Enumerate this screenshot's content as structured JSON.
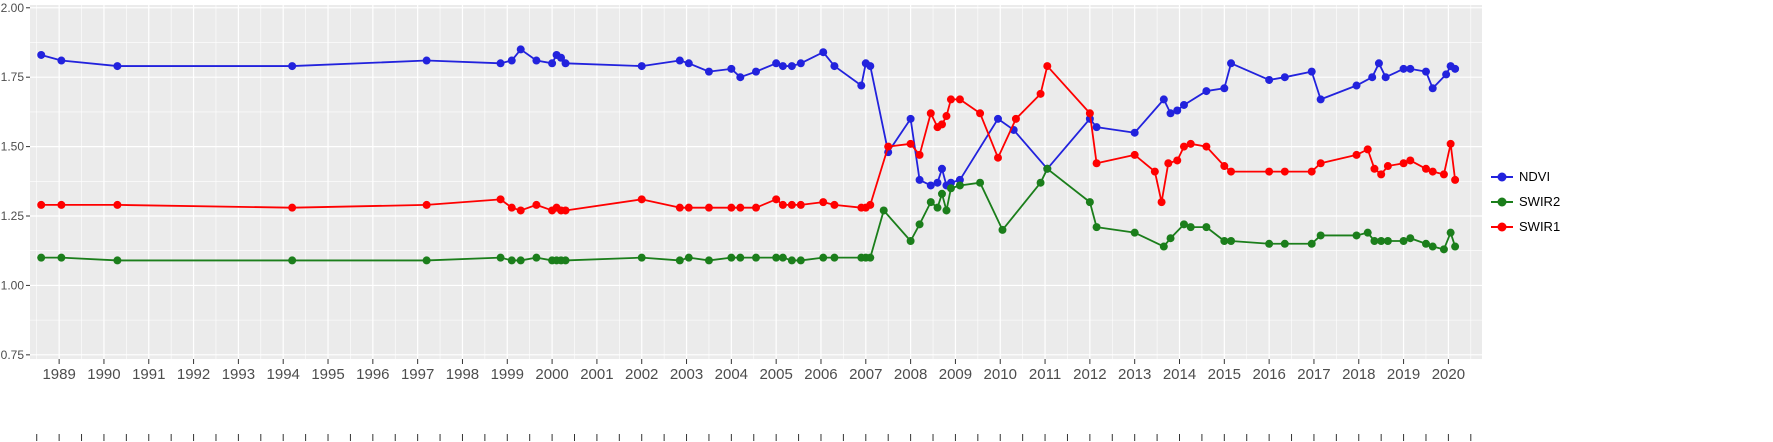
{
  "figure": {
    "background": "#FFFFFF",
    "panel_background": "#EBEBEB",
    "grid_color": "#FFFFFF",
    "axis_text_color": "#4D4D4D",
    "tick_color": "#333333"
  },
  "legend": {
    "items": [
      {
        "label": "NDVI",
        "color": "#2222DD"
      },
      {
        "label": "SWIR2",
        "color": "#1B7E1B"
      },
      {
        "label": "SWIR1",
        "color": "#FF0000"
      }
    ]
  },
  "chart_data": {
    "type": "line",
    "title": "",
    "xlabel": "",
    "ylabel": "",
    "grid": true,
    "legend_position": "right",
    "xlim": [
      1988.35,
      2020.75
    ],
    "ylim": [
      0.735,
      2.01
    ],
    "x_ticks": [
      1989,
      1990,
      1991,
      1992,
      1993,
      1994,
      1995,
      1996,
      1997,
      1998,
      1999,
      2000,
      2001,
      2002,
      2003,
      2004,
      2005,
      2006,
      2007,
      2008,
      2009,
      2010,
      2011,
      2012,
      2013,
      2014,
      2015,
      2016,
      2017,
      2018,
      2019,
      2020
    ],
    "y_ticks": [
      0.75,
      1.0,
      1.25,
      1.5,
      1.75,
      2.0
    ],
    "y_tick_labels": [
      "0.75",
      "1.00",
      "1.25",
      "1.50",
      "1.75",
      "2.00"
    ],
    "series": [
      {
        "name": "NDVI",
        "color": "#2222DD",
        "x": [
          1988.6,
          1989.05,
          1990.3,
          1994.2,
          1997.2,
          1998.85,
          1999.1,
          1999.3,
          1999.65,
          2000.0,
          2000.1,
          2000.2,
          2000.3,
          2002.0,
          2002.85,
          2003.05,
          2003.5,
          2004.0,
          2004.2,
          2004.55,
          2005.0,
          2005.15,
          2005.35,
          2005.55,
          2006.05,
          2006.3,
          2006.9,
          2007.0,
          2007.1,
          2007.5,
          2008.0,
          2008.2,
          2008.45,
          2008.6,
          2008.7,
          2008.8,
          2008.9,
          2009.1,
          2009.95,
          2010.3,
          2011.05,
          2012.0,
          2012.15,
          2013.0,
          2013.65,
          2013.8,
          2013.95,
          2014.1,
          2014.6,
          2015.0,
          2015.15,
          2016.0,
          2016.35,
          2016.95,
          2017.15,
          2017.95,
          2018.3,
          2018.45,
          2018.6,
          2019.0,
          2019.15,
          2019.5,
          2019.65,
          2019.95,
          2020.05,
          2020.15
        ],
        "y": [
          1.83,
          1.81,
          1.79,
          1.79,
          1.81,
          1.8,
          1.81,
          1.85,
          1.81,
          1.8,
          1.83,
          1.82,
          1.8,
          1.79,
          1.81,
          1.8,
          1.77,
          1.78,
          1.75,
          1.77,
          1.8,
          1.79,
          1.79,
          1.8,
          1.84,
          1.79,
          1.72,
          1.8,
          1.79,
          1.48,
          1.6,
          1.38,
          1.36,
          1.37,
          1.42,
          1.36,
          1.37,
          1.38,
          1.6,
          1.56,
          1.42,
          1.6,
          1.57,
          1.55,
          1.67,
          1.62,
          1.63,
          1.65,
          1.7,
          1.71,
          1.8,
          1.74,
          1.75,
          1.77,
          1.67,
          1.72,
          1.75,
          1.8,
          1.75,
          1.78,
          1.78,
          1.77,
          1.71,
          1.76,
          1.79,
          1.78
        ]
      },
      {
        "name": "SWIR2",
        "color": "#1B7E1B",
        "x": [
          1988.6,
          1989.05,
          1990.3,
          1994.2,
          1997.2,
          1998.85,
          1999.1,
          1999.3,
          1999.65,
          2000.0,
          2000.1,
          2000.2,
          2000.3,
          2002.0,
          2002.85,
          2003.05,
          2003.5,
          2004.0,
          2004.2,
          2004.55,
          2005.0,
          2005.15,
          2005.35,
          2005.55,
          2006.05,
          2006.3,
          2006.9,
          2007.0,
          2007.1,
          2007.4,
          2008.0,
          2008.2,
          2008.45,
          2008.6,
          2008.7,
          2008.8,
          2008.9,
          2009.1,
          2009.55,
          2010.05,
          2010.9,
          2011.05,
          2012.0,
          2012.15,
          2013.0,
          2013.65,
          2013.8,
          2014.1,
          2014.25,
          2014.6,
          2015.0,
          2015.15,
          2016.0,
          2016.35,
          2016.95,
          2017.15,
          2017.95,
          2018.2,
          2018.35,
          2018.5,
          2018.65,
          2019.0,
          2019.15,
          2019.5,
          2019.65,
          2019.9,
          2020.05,
          2020.15
        ],
        "y": [
          1.1,
          1.1,
          1.09,
          1.09,
          1.09,
          1.1,
          1.09,
          1.09,
          1.1,
          1.09,
          1.09,
          1.09,
          1.09,
          1.1,
          1.09,
          1.1,
          1.09,
          1.1,
          1.1,
          1.1,
          1.1,
          1.1,
          1.09,
          1.09,
          1.1,
          1.1,
          1.1,
          1.1,
          1.1,
          1.27,
          1.16,
          1.22,
          1.3,
          1.28,
          1.33,
          1.27,
          1.35,
          1.36,
          1.37,
          1.2,
          1.37,
          1.42,
          1.3,
          1.21,
          1.19,
          1.14,
          1.17,
          1.22,
          1.21,
          1.21,
          1.16,
          1.16,
          1.15,
          1.15,
          1.15,
          1.18,
          1.18,
          1.19,
          1.16,
          1.16,
          1.16,
          1.16,
          1.17,
          1.15,
          1.14,
          1.13,
          1.19,
          1.14
        ]
      },
      {
        "name": "SWIR1",
        "color": "#FF0000",
        "x": [
          1988.6,
          1989.05,
          1990.3,
          1994.2,
          1997.2,
          1998.85,
          1999.1,
          1999.3,
          1999.65,
          2000.0,
          2000.1,
          2000.2,
          2000.3,
          2002.0,
          2002.85,
          2003.05,
          2003.5,
          2004.0,
          2004.2,
          2004.55,
          2005.0,
          2005.15,
          2005.35,
          2005.55,
          2006.05,
          2006.3,
          2006.9,
          2007.0,
          2007.1,
          2007.5,
          2008.0,
          2008.2,
          2008.45,
          2008.6,
          2008.7,
          2008.8,
          2008.9,
          2009.1,
          2009.55,
          2009.95,
          2010.35,
          2010.9,
          2011.05,
          2012.0,
          2012.15,
          2013.0,
          2013.45,
          2013.6,
          2013.75,
          2013.95,
          2014.1,
          2014.25,
          2014.6,
          2015.0,
          2015.15,
          2016.0,
          2016.35,
          2016.95,
          2017.15,
          2017.95,
          2018.2,
          2018.35,
          2018.5,
          2018.65,
          2019.0,
          2019.15,
          2019.5,
          2019.65,
          2019.9,
          2020.05,
          2020.15
        ],
        "y": [
          1.29,
          1.29,
          1.29,
          1.28,
          1.29,
          1.31,
          1.28,
          1.27,
          1.29,
          1.27,
          1.28,
          1.27,
          1.27,
          1.31,
          1.28,
          1.28,
          1.28,
          1.28,
          1.28,
          1.28,
          1.31,
          1.29,
          1.29,
          1.29,
          1.3,
          1.29,
          1.28,
          1.28,
          1.29,
          1.5,
          1.51,
          1.47,
          1.62,
          1.57,
          1.58,
          1.61,
          1.67,
          1.67,
          1.62,
          1.46,
          1.6,
          1.69,
          1.79,
          1.62,
          1.44,
          1.47,
          1.41,
          1.3,
          1.44,
          1.45,
          1.5,
          1.51,
          1.5,
          1.43,
          1.41,
          1.41,
          1.41,
          1.41,
          1.44,
          1.47,
          1.49,
          1.42,
          1.4,
          1.43,
          1.44,
          1.45,
          1.42,
          1.41,
          1.4,
          1.51,
          1.38
        ]
      }
    ]
  }
}
